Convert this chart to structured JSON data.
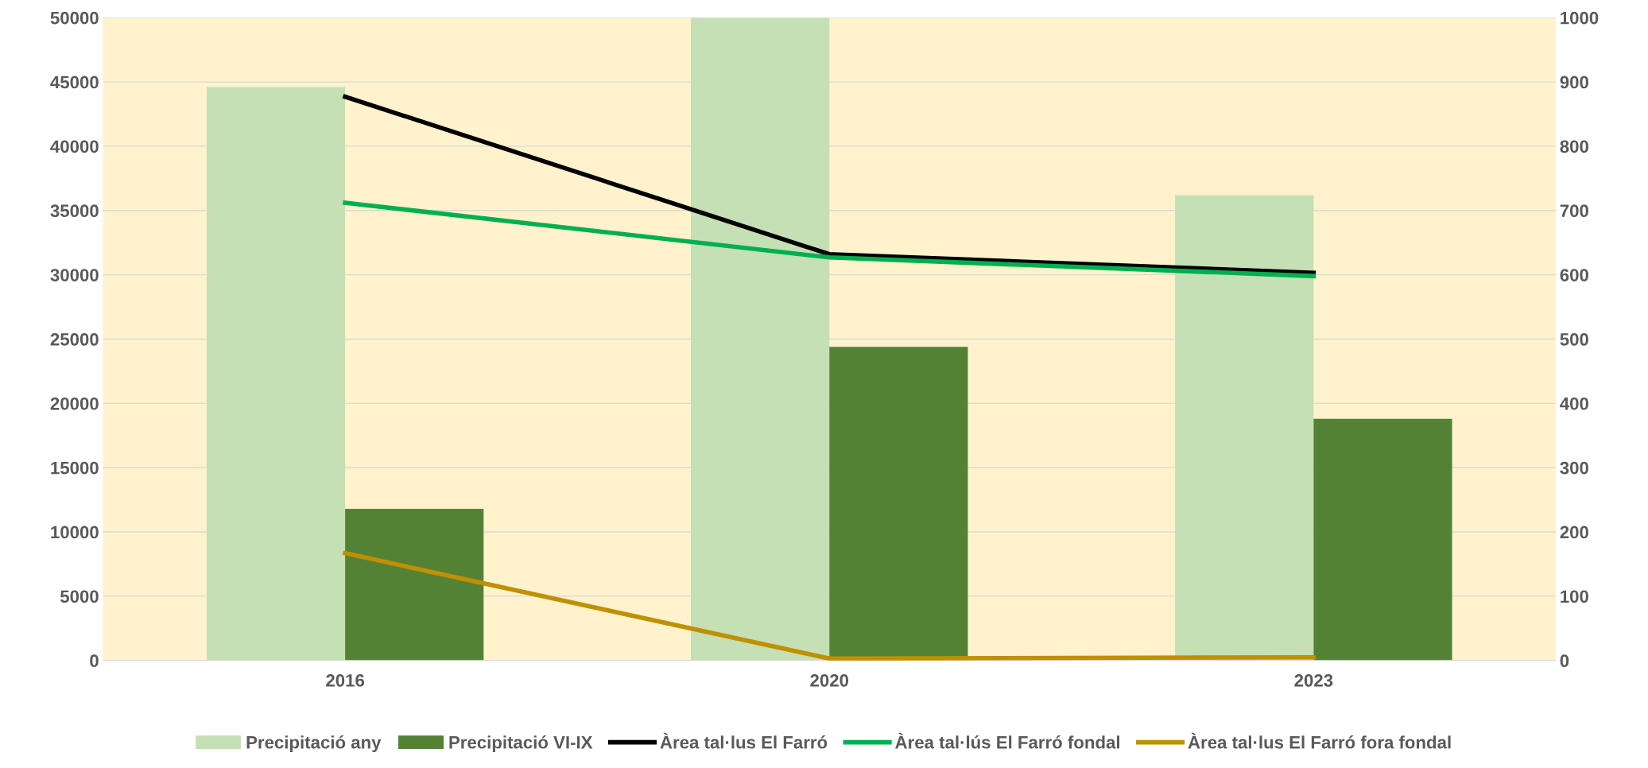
{
  "chart_data": {
    "type": "bar",
    "categories": [
      "2016",
      "2020",
      "2023"
    ],
    "series": [
      {
        "name": "Precipitació any",
        "color": "#c5e0b4",
        "values": [
          44600,
          50000,
          36200
        ]
      },
      {
        "name": "Precipitació VI-IX",
        "color": "#548235",
        "values": [
          11800,
          24400,
          18800
        ]
      },
      {
        "name": "Àrea tal·lus El Farró",
        "type": "line",
        "axis": "y2",
        "color": "#000000",
        "values": [
          877,
          632,
          603
        ]
      },
      {
        "name": "Àrea tal·lús El Farró fondal",
        "type": "line",
        "axis": "y2",
        "color": "#00b050",
        "values": [
          712,
          627,
          598
        ]
      },
      {
        "name": "Àrea tal·lus El Farró fora fondal",
        "type": "line",
        "axis": "y2",
        "color": "#bf9000",
        "values": [
          167,
          3,
          5
        ]
      }
    ],
    "ylim": [
      0,
      50000
    ],
    "yticks": [
      0,
      5000,
      10000,
      15000,
      20000,
      25000,
      30000,
      35000,
      40000,
      45000,
      50000
    ],
    "y2lim": [
      0,
      1000
    ],
    "y2ticks": [
      0,
      100,
      200,
      300,
      400,
      500,
      600,
      700,
      800,
      900,
      1000
    ],
    "grid": "y",
    "legend": "bottom",
    "marker": "none",
    "line_style": "solid"
  }
}
